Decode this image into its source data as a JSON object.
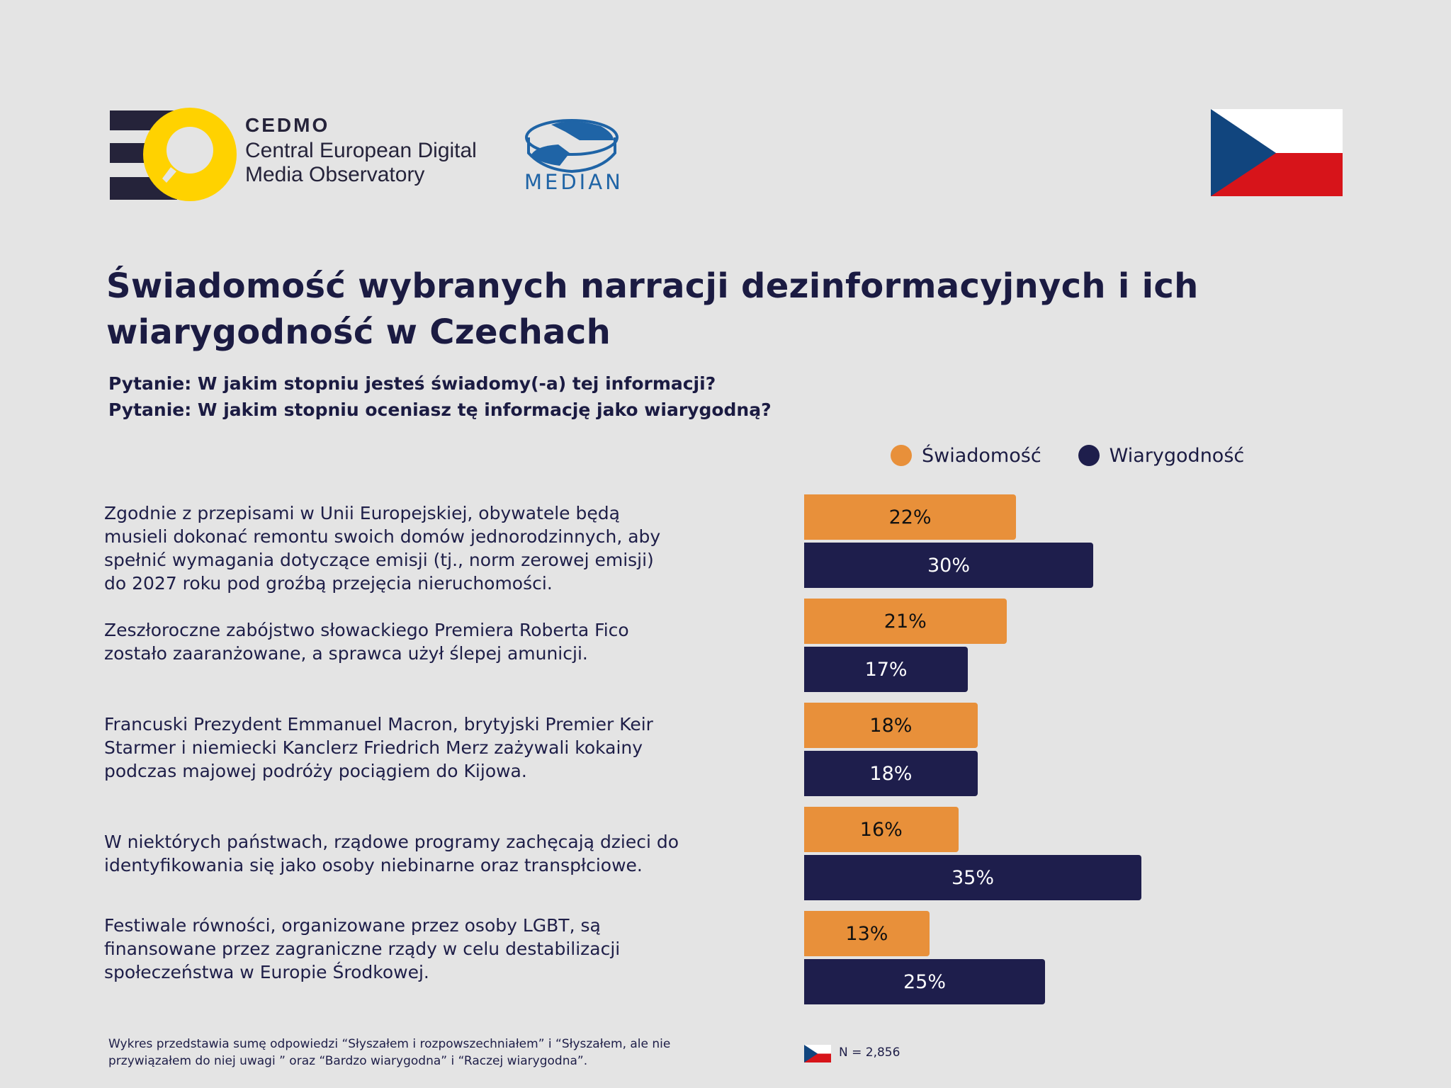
{
  "header": {
    "cedmo": {
      "name": "CEDMO",
      "line1": "Central European Digital",
      "line2": "Media Observatory"
    },
    "median": {
      "name": "MEDIAN"
    },
    "country_flag": "czech-flag"
  },
  "title": {
    "line1": "Świadomość wybranych narracji dezinformacyjnych i ich",
    "line2": "wiarygodność w Czechach"
  },
  "subtitle": {
    "line1": "Pytanie: W jakim stopniu jesteś świadomy(-a) tej informacji?",
    "line2": "Pytanie: W jakim stopniu oceniasz tę informację jako wiarygodną?"
  },
  "colors": {
    "awareness": "#e8903a",
    "credibility": "#1e1e4c",
    "background": "#e4e4e4",
    "text": "#1b1b42"
  },
  "chart_data": {
    "type": "bar",
    "orientation": "horizontal",
    "title": "Świadomość wybranych narracji dezinformacyjnych i ich wiarygodność w Czechach",
    "xlabel": "",
    "ylabel": "",
    "unit": "%",
    "xlim": [
      0,
      100
    ],
    "grid": false,
    "legend": "top-right",
    "categories": [
      {
        "lines": [
          "Zgodnie z przepisami w Unii Europejskiej, obywatele będą",
          "musieli dokonać remontu swoich domów jednorodzinnych, aby",
          "spełnić wymagania dotyczące emisji (tj., norm zerowej emisji)",
          "do 2027 roku pod groźbą przejęcia nieruchomości."
        ]
      },
      {
        "lines": [
          "Zeszłoroczne zabójstwo słowackiego Premiera Roberta Fico",
          "zostało zaaranżowane, a sprawca użył ślepej amunicji."
        ]
      },
      {
        "lines": [
          "Francuski Prezydent Emmanuel Macron, brytyjski Premier Keir",
          "Starmer i niemiecki Kanclerz Friedrich Merz zażywali kokainy",
          "podczas majowej podróży pociągiem do Kijowa."
        ]
      },
      {
        "lines": [
          "W niektórych państwach, rządowe programy zachęcają dzieci do",
          "identyfikowania się jako osoby niebinarne oraz transpłciowe."
        ]
      },
      {
        "lines": [
          "Festiwale równości, organizowane przez osoby LGBT, są",
          "finansowane przez zagraniczne rządy w celu destabilizacji",
          "społeczeństwa w Europie Środkowej."
        ]
      }
    ],
    "series": [
      {
        "name": "Świadomość",
        "values": [
          22,
          21,
          18,
          16,
          13
        ],
        "labels": [
          "22%",
          "21%",
          "18%",
          "16%",
          "13%"
        ]
      },
      {
        "name": "Wiarygodność",
        "values": [
          30,
          17,
          18,
          35,
          25
        ],
        "labels": [
          "30%",
          "17%",
          "18%",
          "35%",
          "25%"
        ]
      }
    ]
  },
  "footer": {
    "note_line1": "Wykres przedstawia sumę odpowiedzi “Słyszałem i rozpowszechniałem” i “Słyszałem, ale nie",
    "note_line2": "przywiązałem do niej uwagi ” oraz “Bardzo wiarygodna” i “Raczej wiarygodna”.",
    "sample": "N = 2,856"
  }
}
